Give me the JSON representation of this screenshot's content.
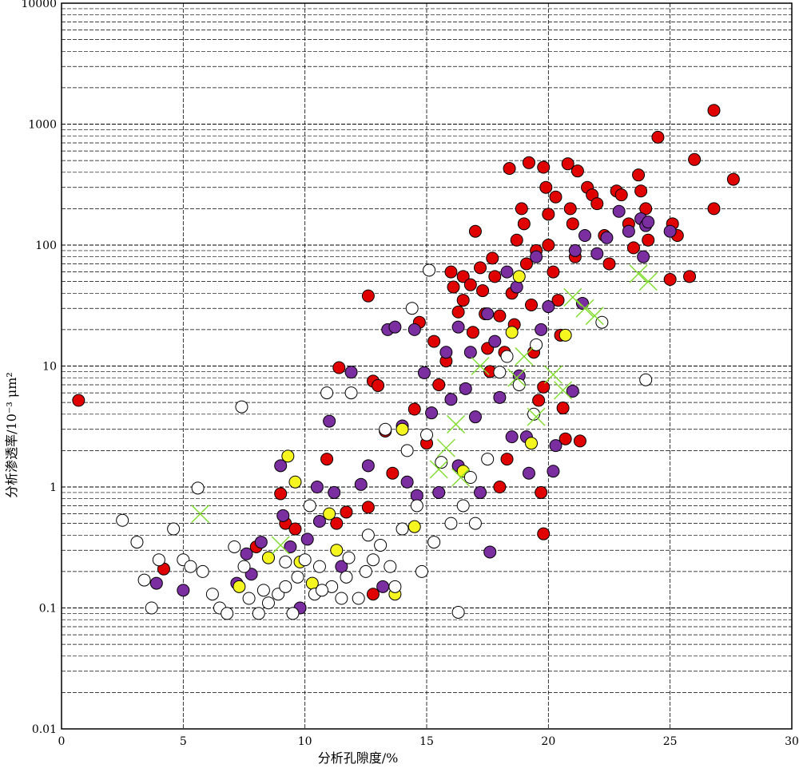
{
  "chart_data": {
    "type": "scatter",
    "title": "",
    "xlabel": "分析孔隙度/%",
    "ylabel": "分析渗透率/10⁻³ μm²",
    "x_range": [
      0,
      30
    ],
    "y_range": [
      0.01,
      10000
    ],
    "y_scale": "log",
    "grid": true,
    "x_ticks": [
      "0",
      "5",
      "10",
      "15",
      "20",
      "25",
      "30"
    ],
    "y_ticks": [
      "0.01",
      "0.1",
      "1",
      "10",
      "100",
      "1000",
      "10000"
    ],
    "colors": {
      "red": "#e00000",
      "purple": "#7a2ea0",
      "yellow": "#f5f520",
      "open": "#ffffff",
      "cross": "#7fdc2a"
    },
    "series": [
      {
        "marker": "filled-circle",
        "color": "#e00000",
        "points": [
          [
            0.7,
            5.2
          ],
          [
            4.2,
            0.21
          ],
          [
            8,
            0.32
          ],
          [
            9,
            0.88
          ],
          [
            9.2,
            0.5
          ],
          [
            9.6,
            0.45
          ],
          [
            10.9,
            1.7
          ],
          [
            11.3,
            0.5
          ],
          [
            11.4,
            9.7
          ],
          [
            11.7,
            0.62
          ],
          [
            12.6,
            38
          ],
          [
            12.8,
            7.5
          ],
          [
            12.6,
            0.68
          ],
          [
            12.8,
            0.13
          ],
          [
            13,
            6.9
          ],
          [
            13.3,
            2.9
          ],
          [
            13.6,
            1.3
          ],
          [
            14.5,
            4.4
          ],
          [
            14.7,
            23
          ],
          [
            15,
            2.3
          ],
          [
            15.3,
            16
          ],
          [
            15.5,
            7
          ],
          [
            15.8,
            11
          ],
          [
            16,
            60
          ],
          [
            16.1,
            45
          ],
          [
            16.3,
            28
          ],
          [
            16.5,
            55
          ],
          [
            16.5,
            35
          ],
          [
            16.8,
            47
          ],
          [
            16.9,
            19
          ],
          [
            17,
            130
          ],
          [
            17.2,
            65
          ],
          [
            17.3,
            42
          ],
          [
            17.4,
            27
          ],
          [
            17.5,
            14
          ],
          [
            17.6,
            9
          ],
          [
            17.7,
            78
          ],
          [
            17.8,
            55
          ],
          [
            18,
            26
          ],
          [
            18,
            1
          ],
          [
            18.2,
            13
          ],
          [
            18.3,
            1.7
          ],
          [
            18.4,
            430
          ],
          [
            18.5,
            40
          ],
          [
            18.6,
            22
          ],
          [
            18.7,
            110
          ],
          [
            18.9,
            200
          ],
          [
            19,
            150
          ],
          [
            19.1,
            70
          ],
          [
            19.2,
            480
          ],
          [
            19.3,
            32
          ],
          [
            19.4,
            13
          ],
          [
            19.5,
            90
          ],
          [
            19.6,
            5.2
          ],
          [
            19.7,
            0.9
          ],
          [
            19.8,
            440
          ],
          [
            19.9,
            300
          ],
          [
            20,
            180
          ],
          [
            20,
            100
          ],
          [
            20.2,
            60
          ],
          [
            20.3,
            250
          ],
          [
            20.4,
            35
          ],
          [
            20.5,
            18
          ],
          [
            20.6,
            4.5
          ],
          [
            20.7,
            2.5
          ],
          [
            20.8,
            470
          ],
          [
            20.9,
            200
          ],
          [
            21,
            150
          ],
          [
            21.1,
            80
          ],
          [
            21.2,
            410
          ],
          [
            21.3,
            2.4
          ],
          [
            21.6,
            300
          ],
          [
            21.8,
            260
          ],
          [
            22,
            220
          ],
          [
            22.3,
            120
          ],
          [
            22.5,
            70
          ],
          [
            22.8,
            280
          ],
          [
            23,
            260
          ],
          [
            23.3,
            150
          ],
          [
            23.5,
            95
          ],
          [
            23.7,
            380
          ],
          [
            23.8,
            280
          ],
          [
            24,
            200
          ],
          [
            24.1,
            110
          ],
          [
            24.5,
            780
          ],
          [
            25.1,
            150
          ],
          [
            25.3,
            120
          ],
          [
            25,
            52
          ],
          [
            25.8,
            55
          ],
          [
            26,
            510
          ],
          [
            26.8,
            1300
          ],
          [
            26.8,
            200
          ],
          [
            27.6,
            350
          ],
          [
            19.8,
            0.41
          ],
          [
            19.8,
            6.7
          ]
        ]
      },
      {
        "marker": "filled-circle",
        "color": "#7a2ea0",
        "points": [
          [
            3.9,
            0.16
          ],
          [
            5,
            0.14
          ],
          [
            7.2,
            0.16
          ],
          [
            7.6,
            0.28
          ],
          [
            7.8,
            0.19
          ],
          [
            8.2,
            0.35
          ],
          [
            8.5,
            0.26
          ],
          [
            9,
            1.5
          ],
          [
            9.1,
            0.58
          ],
          [
            9.4,
            0.32
          ],
          [
            9.8,
            0.1
          ],
          [
            10.1,
            0.37
          ],
          [
            10.5,
            1
          ],
          [
            10.6,
            0.52
          ],
          [
            11,
            3.5
          ],
          [
            11.2,
            0.9
          ],
          [
            11.5,
            0.22
          ],
          [
            11.9,
            8.9
          ],
          [
            12.3,
            1.05
          ],
          [
            12.6,
            1.5
          ],
          [
            13.2,
            0.15
          ],
          [
            13.4,
            20
          ],
          [
            13.7,
            21
          ],
          [
            14,
            3.2
          ],
          [
            14.2,
            1.1
          ],
          [
            14.5,
            20
          ],
          [
            14.6,
            0.85
          ],
          [
            14.9,
            8.8
          ],
          [
            15.2,
            4.1
          ],
          [
            15.5,
            0.9
          ],
          [
            15.8,
            13
          ],
          [
            16,
            5.3
          ],
          [
            16.3,
            21
          ],
          [
            16.3,
            1.5
          ],
          [
            16.6,
            6.5
          ],
          [
            16.8,
            13
          ],
          [
            17,
            3.8
          ],
          [
            17.2,
            0.9
          ],
          [
            17.5,
            27
          ],
          [
            17.6,
            0.29
          ],
          [
            17.8,
            16
          ],
          [
            18,
            5.5
          ],
          [
            18.3,
            60
          ],
          [
            18.5,
            2.6
          ],
          [
            18.7,
            45
          ],
          [
            18.8,
            8.3
          ],
          [
            19.1,
            2.6
          ],
          [
            19.2,
            1.3
          ],
          [
            19.5,
            80
          ],
          [
            19.7,
            20
          ],
          [
            20,
            31
          ],
          [
            20.2,
            1.35
          ],
          [
            20.3,
            2.2
          ],
          [
            21,
            6.2
          ],
          [
            21.1,
            90
          ],
          [
            21.4,
            33
          ],
          [
            21.5,
            120
          ],
          [
            22,
            85
          ],
          [
            22.4,
            115
          ],
          [
            22.9,
            190
          ],
          [
            23.3,
            130
          ],
          [
            23.8,
            165
          ],
          [
            23.9,
            80
          ],
          [
            24,
            145
          ],
          [
            25,
            130
          ],
          [
            24.1,
            155
          ]
        ]
      },
      {
        "marker": "filled-circle",
        "color": "#f5f520",
        "points": [
          [
            7.3,
            0.15
          ],
          [
            8.5,
            0.26
          ],
          [
            9.3,
            1.8
          ],
          [
            9.6,
            1.1
          ],
          [
            9.8,
            0.24
          ],
          [
            10.3,
            0.16
          ],
          [
            11,
            0.6
          ],
          [
            11.3,
            0.3
          ],
          [
            13.7,
            0.13
          ],
          [
            14,
            3
          ],
          [
            14.5,
            0.47
          ],
          [
            16.5,
            1.35
          ],
          [
            18.5,
            19
          ],
          [
            18.8,
            55
          ],
          [
            19.3,
            2.3
          ],
          [
            20.7,
            18
          ]
        ]
      },
      {
        "marker": "open-circle",
        "color": "#ffffff",
        "points": [
          [
            2.5,
            0.53
          ],
          [
            3.1,
            0.35
          ],
          [
            3.4,
            0.17
          ],
          [
            3.7,
            0.1
          ],
          [
            4,
            0.25
          ],
          [
            4.6,
            0.45
          ],
          [
            5,
            0.25
          ],
          [
            5.3,
            0.22
          ],
          [
            5.6,
            0.98
          ],
          [
            5.8,
            0.2
          ],
          [
            6.2,
            0.13
          ],
          [
            6.5,
            0.1
          ],
          [
            6.8,
            0.09
          ],
          [
            7.1,
            0.32
          ],
          [
            7.4,
            4.6
          ],
          [
            7.5,
            0.22
          ],
          [
            7.7,
            0.12
          ],
          [
            8.1,
            0.09
          ],
          [
            8.3,
            0.14
          ],
          [
            8.5,
            0.11
          ],
          [
            8.9,
            0.13
          ],
          [
            9.2,
            0.15
          ],
          [
            9.5,
            0.09
          ],
          [
            9.7,
            0.18
          ],
          [
            10,
            0.25
          ],
          [
            10.2,
            0.7
          ],
          [
            10.4,
            0.13
          ],
          [
            10.6,
            0.22
          ],
          [
            10.9,
            6
          ],
          [
            11.1,
            0.15
          ],
          [
            11.5,
            0.12
          ],
          [
            11.7,
            0.18
          ],
          [
            11.9,
            6
          ],
          [
            12.2,
            0.12
          ],
          [
            12.5,
            0.2
          ],
          [
            12.8,
            0.25
          ],
          [
            13.1,
            0.33
          ],
          [
            13.3,
            3
          ],
          [
            13.5,
            0.22
          ],
          [
            13.7,
            0.15
          ],
          [
            14,
            0.45
          ],
          [
            14.2,
            2
          ],
          [
            14.4,
            30
          ],
          [
            14.6,
            0.7
          ],
          [
            14.8,
            0.2
          ],
          [
            15,
            2.7
          ],
          [
            15.1,
            62
          ],
          [
            15.3,
            0.35
          ],
          [
            15.6,
            1.6
          ],
          [
            16,
            0.5
          ],
          [
            16.3,
            0.092
          ],
          [
            16.5,
            0.7
          ],
          [
            16.8,
            1.2
          ],
          [
            17,
            0.5
          ],
          [
            17.5,
            1.7
          ],
          [
            18,
            8.9
          ],
          [
            18.3,
            12
          ],
          [
            18.8,
            7
          ],
          [
            19.4,
            4
          ],
          [
            19.5,
            15
          ],
          [
            22.2,
            23
          ],
          [
            24,
            7.7
          ],
          [
            9.2,
            0.24
          ],
          [
            11.8,
            0.26
          ],
          [
            10.7,
            0.14
          ],
          [
            12.6,
            0.4
          ]
        ]
      },
      {
        "marker": "cross",
        "color": "#7fdc2a",
        "points": [
          [
            5.7,
            0.6
          ],
          [
            9,
            0.33
          ],
          [
            15.5,
            1.4
          ],
          [
            15.8,
            2.1
          ],
          [
            16.2,
            3.3
          ],
          [
            16.4,
            1.2
          ],
          [
            17.2,
            10
          ],
          [
            18.7,
            8
          ],
          [
            19.5,
            3.8
          ],
          [
            20.2,
            8.5
          ],
          [
            20.6,
            6.3
          ],
          [
            21,
            37
          ],
          [
            21.5,
            30
          ],
          [
            21.9,
            26
          ],
          [
            23.7,
            58
          ],
          [
            24.1,
            50
          ],
          [
            19,
            12
          ]
        ]
      }
    ]
  }
}
